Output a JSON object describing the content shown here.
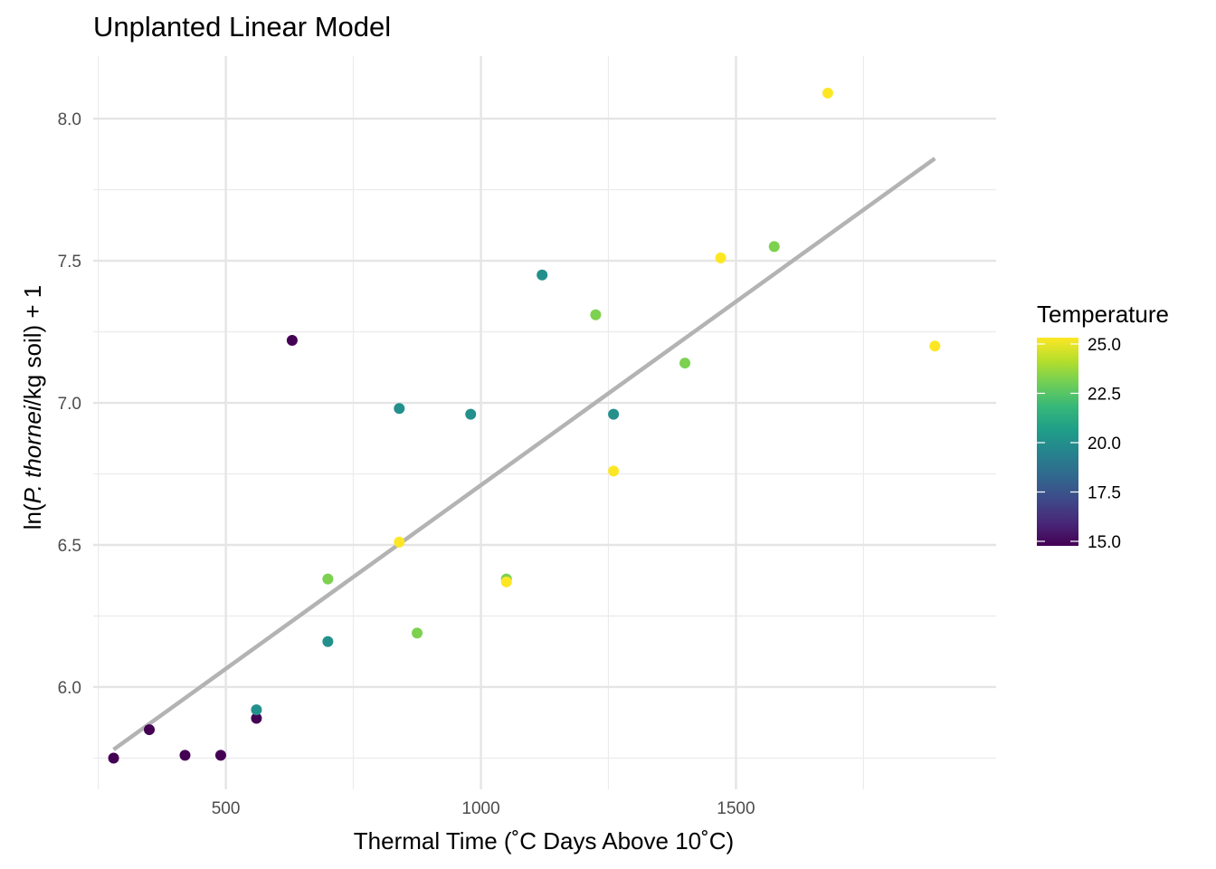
{
  "chart_data": {
    "type": "scatter",
    "title": "Unplanted Linear Model",
    "xlabel": "Thermal Time (˚C Days Above 10˚C)",
    "ylabel": {
      "prefix": "ln(",
      "italic": "P. thornei",
      "suffix": "/kg soil) + 1"
    },
    "xlim": [
      240,
      2010
    ],
    "ylim": [
      5.64,
      8.22
    ],
    "x_ticks": [
      500,
      1000,
      1500
    ],
    "x_tick_labels": [
      "500",
      "1000",
      "1500"
    ],
    "y_ticks": [
      6.0,
      6.5,
      7.0,
      7.5,
      8.0
    ],
    "y_tick_labels": [
      "6.0",
      "6.5",
      "7.0",
      "7.5",
      "8.0"
    ],
    "grid": true,
    "legend": {
      "title": "Temperature",
      "placement": "right",
      "range": [
        15,
        25
      ],
      "ticks": [
        15,
        17.5,
        20,
        22.5,
        25
      ],
      "tick_labels": [
        "15.0",
        "17.5",
        "20.0",
        "22.5",
        "25.0"
      ],
      "colormap": [
        "#440154",
        "#482878",
        "#3e4989",
        "#31688e",
        "#26828e",
        "#1f9e89",
        "#35b779",
        "#6ece58",
        "#b5de2b",
        "#fde725"
      ]
    },
    "points": [
      {
        "x": 280,
        "y": 5.75,
        "temp": 15
      },
      {
        "x": 350,
        "y": 5.85,
        "temp": 15
      },
      {
        "x": 420,
        "y": 5.76,
        "temp": 15
      },
      {
        "x": 490,
        "y": 5.76,
        "temp": 15
      },
      {
        "x": 560,
        "y": 5.89,
        "temp": 15
      },
      {
        "x": 630,
        "y": 7.22,
        "temp": 15
      },
      {
        "x": 560,
        "y": 5.92,
        "temp": 20
      },
      {
        "x": 700,
        "y": 6.16,
        "temp": 20
      },
      {
        "x": 840,
        "y": 6.98,
        "temp": 20
      },
      {
        "x": 980,
        "y": 6.96,
        "temp": 20
      },
      {
        "x": 1120,
        "y": 7.45,
        "temp": 20
      },
      {
        "x": 1260,
        "y": 6.96,
        "temp": 20
      },
      {
        "x": 700,
        "y": 6.38,
        "temp": 23
      },
      {
        "x": 875,
        "y": 6.19,
        "temp": 23
      },
      {
        "x": 1050,
        "y": 6.38,
        "temp": 23
      },
      {
        "x": 1225,
        "y": 7.31,
        "temp": 23
      },
      {
        "x": 1400,
        "y": 7.14,
        "temp": 23
      },
      {
        "x": 1575,
        "y": 7.55,
        "temp": 23
      },
      {
        "x": 840,
        "y": 6.51,
        "temp": 25
      },
      {
        "x": 1050,
        "y": 6.37,
        "temp": 25
      },
      {
        "x": 1260,
        "y": 6.76,
        "temp": 25
      },
      {
        "x": 1470,
        "y": 7.51,
        "temp": 25
      },
      {
        "x": 1680,
        "y": 8.09,
        "temp": 25
      },
      {
        "x": 1890,
        "y": 7.2,
        "temp": 25
      }
    ],
    "fit_line": {
      "x": [
        280,
        1890
      ],
      "y": [
        5.78,
        7.86
      ],
      "color": "#b3b3b3"
    }
  }
}
